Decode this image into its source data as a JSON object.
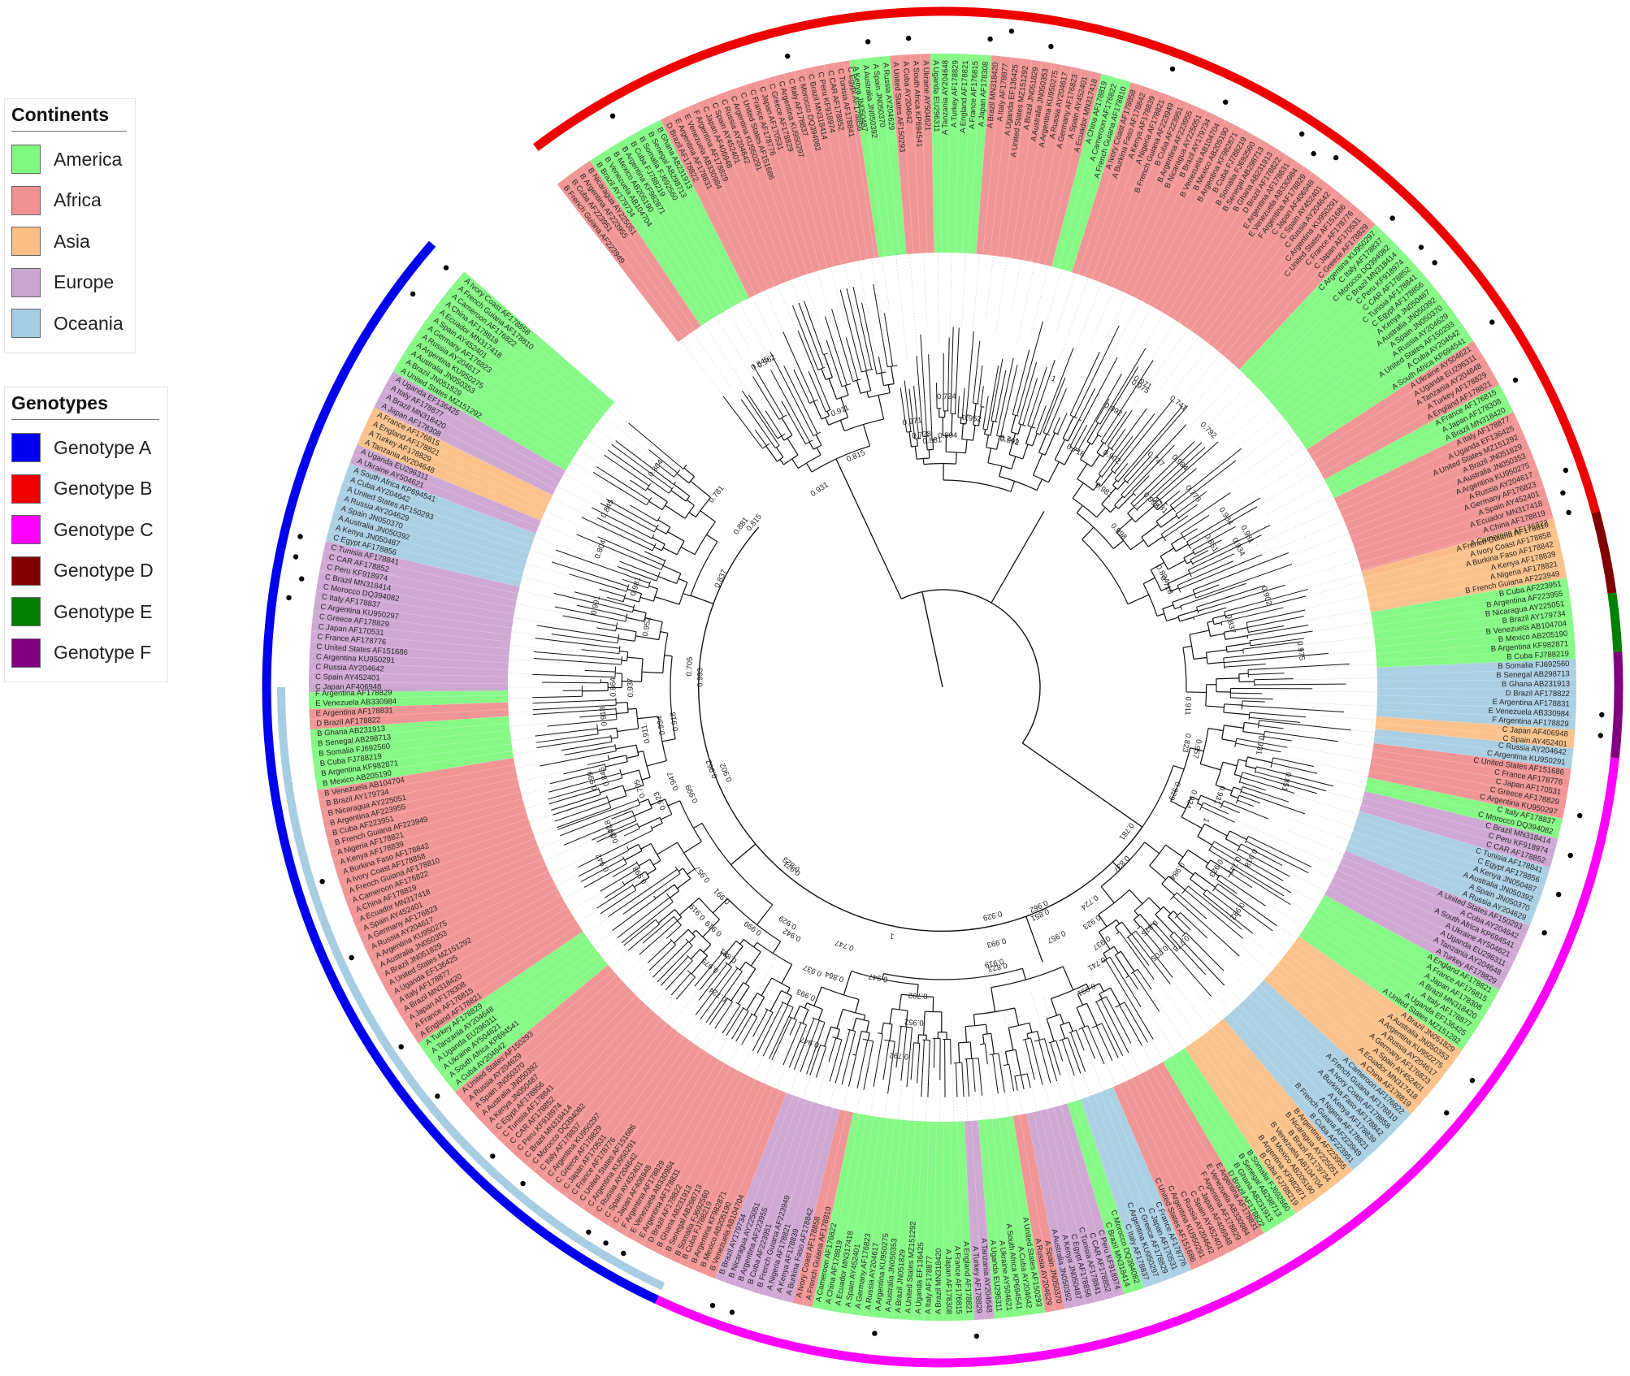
{
  "legend_continents": {
    "title": "Continents",
    "items": [
      {
        "label": "America",
        "color": "#80f980"
      },
      {
        "label": "Africa",
        "color": "#f09090"
      },
      {
        "label": "Asia",
        "color": "#fbbf86"
      },
      {
        "label": "Europe",
        "color": "#cca4d2"
      },
      {
        "label": "Oceania",
        "color": "#a7cde2"
      }
    ]
  },
  "legend_genotypes": {
    "title": "Genotypes",
    "items": [
      {
        "label": "Genotype A",
        "color": "#0000ee"
      },
      {
        "label": "Genotype B",
        "color": "#ee0000"
      },
      {
        "label": "Genotype C",
        "color": "#ff00ff"
      },
      {
        "label": "Genotype D",
        "color": "#800000"
      },
      {
        "label": "Genotype E",
        "color": "#008000"
      },
      {
        "label": "Genotype F",
        "color": "#800080"
      }
    ]
  },
  "tree": {
    "genotype_arcs": [
      {
        "genotype": "Genotype B",
        "color": "#ee0000",
        "start_deg": 233,
        "end_deg": 345
      },
      {
        "genotype": "Genotype D",
        "color": "#800000",
        "start_deg": 345,
        "end_deg": 352
      },
      {
        "genotype": "Genotype E",
        "color": "#008000",
        "start_deg": 352,
        "end_deg": 357
      },
      {
        "genotype": "Genotype F",
        "color": "#800080",
        "start_deg": 357,
        "end_deg": 366
      },
      {
        "genotype": "Genotype C",
        "color": "#ff00ff",
        "start_deg": 366,
        "end_deg": 475
      },
      {
        "genotype": "Genotype A",
        "color": "#0000ee",
        "start_deg": 475,
        "end_deg": 581
      }
    ],
    "inner_arcs": [
      {
        "color": "#a7cde2",
        "start_deg": 475,
        "end_deg": 540
      }
    ],
    "sample_tip_labels": [
      "B French Guiana AF223949",
      "B Cuba AF223951",
      "B Argentina AF223955",
      "B Nicaragua AY225051",
      "B Brazil AY179734",
      "B Venezuela AB104704",
      "B Mexico AB205190",
      "B Argentina KF982871",
      "B Cuba FJ788219",
      "B Somalia FJ692560",
      "B Senegal AB298713",
      "B Ghana AB231913",
      "D Brazil AF178822",
      "E Argentina AF178831",
      "E Venezuela AB330984",
      "F Argentina AF178829",
      "C Japan AF406948",
      "C Spain AY452401",
      "C Russia AY204642",
      "C Argentina KU950291",
      "C United States AF151686",
      "C France AF178776",
      "C Japan AF170531",
      "C Greece AF178829",
      "C Argentina KU950297",
      "C Italy AF178837",
      "C Morocco DQ394082",
      "C Brazil MN318414",
      "C Peru KF918974",
      "C CAR AF178852",
      "C Tunisia AF178841",
      "C Egypt AF178856",
      "A Kenya JN050487",
      "A Australia JN050392",
      "A Spain JN050370",
      "A Russia AY204629",
      "A United States AF150293",
      "A Cuba AY204642",
      "A South Africa KP694541",
      "A Ukraine AY504621",
      "A Uganda EU296311",
      "A Tanzania AY204648",
      "A Turkey AF178829",
      "A England AF178821",
      "A France AF176815",
      "A Japan AF178308",
      "A Brazil MN318420",
      "A Italy AF178877",
      "A Uganda EF136425",
      "A United States MZ151292",
      "A Brazil JN051829",
      "A Australia JN050353",
      "A Argentina KU950275",
      "A Russia AY204617",
      "A Germany AF176823",
      "A Spain AY452401",
      "A Ecuador MN317418",
      "A China AF178819",
      "A Cameroon AF176822",
      "A French Guiana AF178810",
      "A Ivory Coast AF178858",
      "A Burkina Faso AF178842",
      "A Kenya AF178839",
      "A Nigeria AF178821"
    ],
    "sample_support_values": [
      "0.999",
      "0.998",
      "0.993",
      "0.992",
      "0.991",
      "0.984",
      "0.981",
      "0.975",
      "0.971",
      "0.962",
      "0.957",
      "0.952",
      "0.947",
      "0.942",
      "0.937",
      "0.931",
      "0.929",
      "0.923",
      "0.918",
      "0.911",
      "0.902",
      "0.881",
      "0.864",
      "0.851",
      "0.845",
      "0.837",
      "0.823",
      "0.815",
      "0.804",
      "0.792",
      "0.781",
      "0.778",
      "0.747",
      "0.741",
      "0.724",
      "0.718",
      "0.705",
      "0.934",
      "0.919",
      "1"
    ]
  }
}
